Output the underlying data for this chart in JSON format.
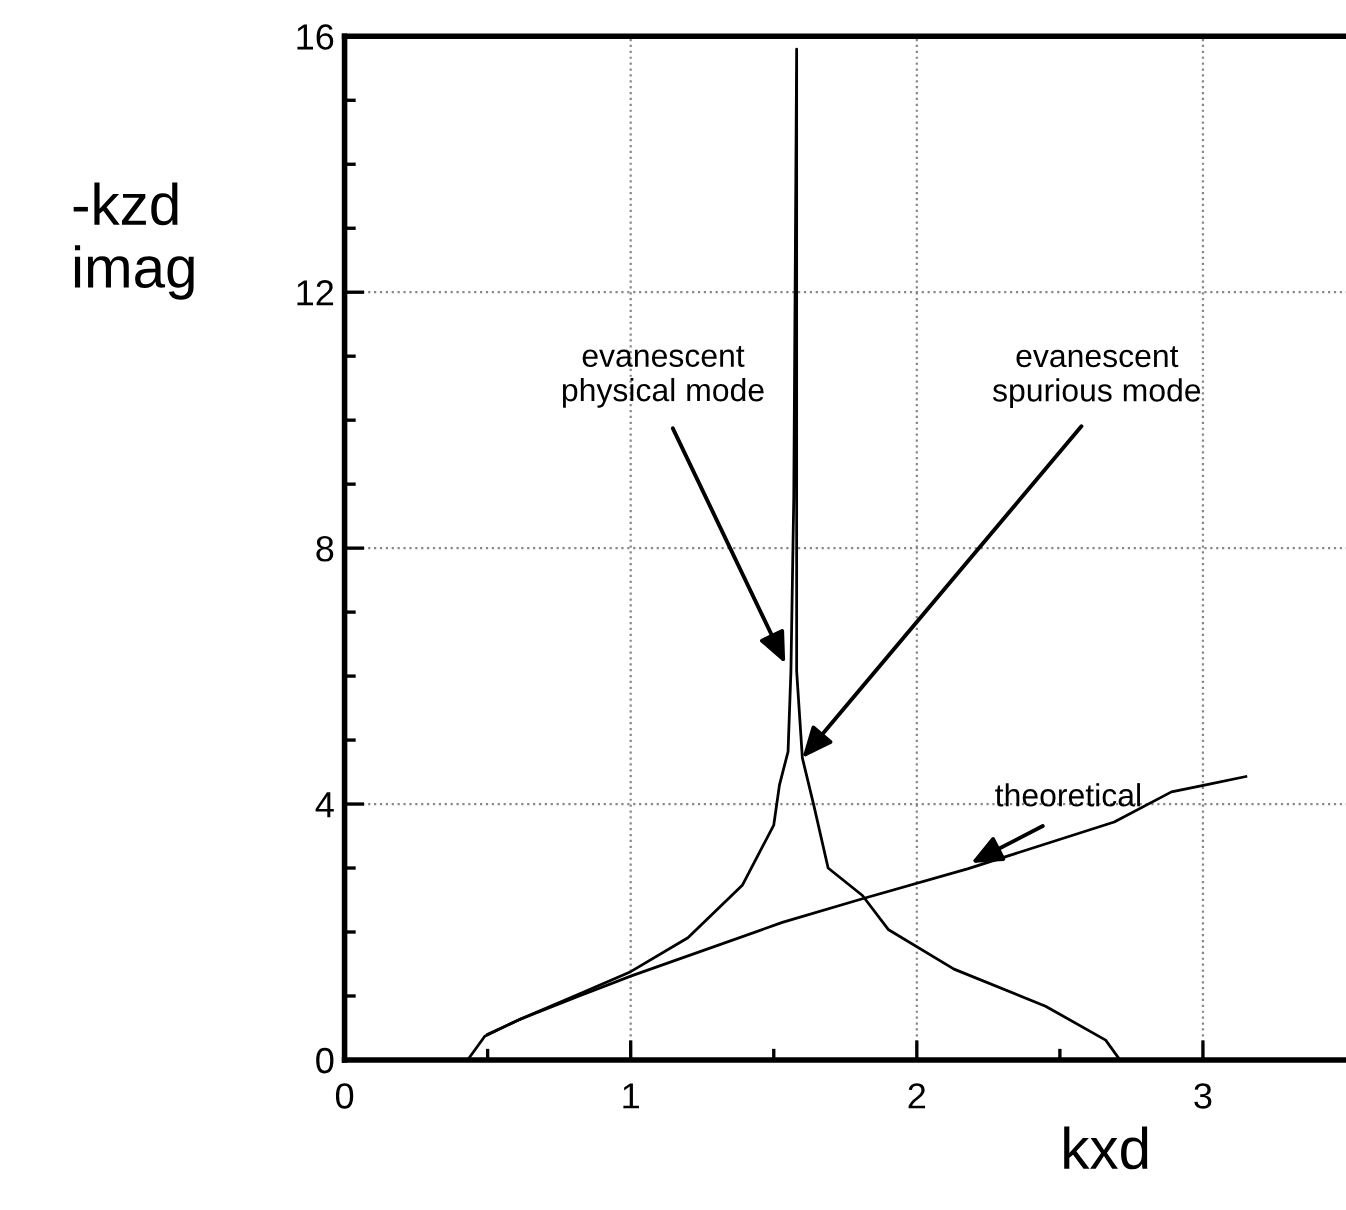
{
  "chart_data": {
    "type": "line",
    "xlabel": "kxd",
    "ylabel": "-kzd\nimag",
    "series": [
      {
        "color": "#000000",
        "x": [
          0.43,
          0.49,
          0.61,
          0.82,
          1.0,
          1.2,
          1.39,
          1.5,
          1.52,
          1.55,
          1.56,
          1.57,
          1.58,
          1.58,
          1.6,
          1.64,
          1.69,
          1.81,
          1.9,
          2.13,
          2.45,
          2.66,
          2.71
        ],
        "values": [
          0,
          0.37,
          0.63,
          1.03,
          1.38,
          1.91,
          2.73,
          3.67,
          4.3,
          4.82,
          6.08,
          8.8,
          15.8,
          6.08,
          4.72,
          3.98,
          3.0,
          2.57,
          2.04,
          1.42,
          0.84,
          0.31,
          0
        ]
      },
      {
        "color": "#000000",
        "x": [
          0.5,
          0.61,
          0.82,
          1.0,
          1.53,
          1.81,
          2.18,
          2.69,
          2.89,
          3.01,
          3.15
        ],
        "values": [
          0.4,
          0.63,
          1.0,
          1.31,
          2.15,
          2.52,
          2.99,
          3.72,
          4.19,
          4.3,
          4.43
        ]
      }
    ],
    "annotations": [
      {
        "text": "evanescent\nphysical mode",
        "x": 1.54,
        "y": 6.2
      },
      {
        "text": "evanescent\nspurious mode",
        "x": 1.6,
        "y": 4.72
      },
      {
        "text": "theoretical",
        "x": 2.19,
        "y": 3.08
      }
    ],
    "xlim": [
      0,
      3.5
    ],
    "ylim": [
      0,
      16
    ],
    "xticks": [
      0,
      {
        "value": 0.5,
        "label": null
      },
      1,
      {
        "value": 1.5,
        "label": null
      },
      2,
      {
        "value": 2.5,
        "label": null
      },
      3
    ],
    "yticks": [
      0,
      {
        "value": 1,
        "label": null
      },
      {
        "value": 2,
        "label": null
      },
      {
        "value": 3,
        "label": null
      },
      4,
      {
        "value": 5,
        "label": null
      },
      {
        "value": 6,
        "label": null
      },
      {
        "value": 7,
        "label": null
      },
      8,
      {
        "value": 9,
        "label": null
      },
      {
        "value": 10,
        "label": null
      },
      {
        "value": 11,
        "label": null
      },
      12,
      {
        "value": 13,
        "label": null
      },
      {
        "value": 14,
        "label": null
      },
      {
        "value": 15,
        "label": null
      },
      16
    ],
    "grid": true,
    "marker": "none",
    "line_style": "solid"
  }
}
